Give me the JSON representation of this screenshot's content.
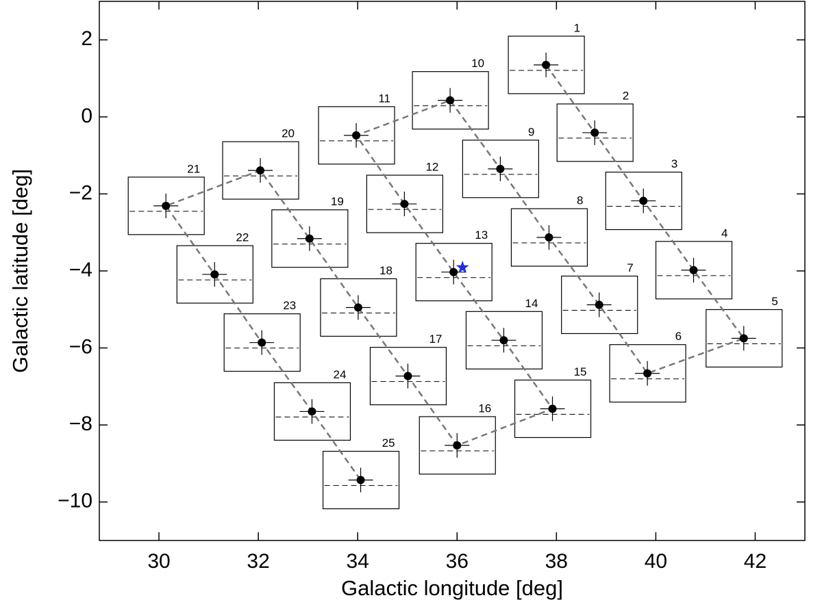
{
  "chart_data": {
    "type": "scatter",
    "x_label": "Galactic longitude [deg]",
    "y_label": "Galactic latitude [deg]",
    "xlim": [
      28.8,
      43
    ],
    "ylim": [
      -11,
      3
    ],
    "xticks": [
      30,
      32,
      34,
      36,
      38,
      40,
      42
    ],
    "yticks": [
      {
        "value": -10,
        "label": "−10"
      },
      {
        "value": -8,
        "label": "−8"
      },
      {
        "value": -6,
        "label": "−6"
      },
      {
        "value": -4,
        "label": "−4"
      },
      {
        "value": -2,
        "label": "−2"
      },
      0,
      2
    ],
    "labels": [
      "1",
      "2",
      "3",
      "4",
      "5",
      "6",
      "7",
      "8",
      "9",
      "10",
      "11",
      "12",
      "13",
      "14",
      "15",
      "16",
      "17",
      "18",
      "19",
      "20",
      "21",
      "22",
      "23",
      "24",
      "25"
    ],
    "x": [
      37.79,
      38.77,
      39.75,
      40.76,
      41.77,
      39.83,
      38.86,
      37.85,
      36.87,
      35.86,
      33.97,
      34.94,
      35.93,
      36.94,
      37.92,
      36.0,
      35.01,
      34.01,
      33.03,
      32.04,
      30.14,
      31.12,
      32.07,
      33.08,
      34.06
    ],
    "values": [
      1.35,
      -0.41,
      -2.18,
      -3.98,
      -5.75,
      -6.66,
      -4.88,
      -3.13,
      -1.35,
      0.43,
      -0.48,
      -2.26,
      -4.03,
      -5.8,
      -7.58,
      -8.53,
      -6.73,
      -4.95,
      -3.16,
      -1.39,
      -2.31,
      -4.09,
      -5.86,
      -7.65,
      -9.43
    ],
    "color": "#000000",
    "line_color": "#777777",
    "marker": {
      "x": 36.11,
      "y": -3.91,
      "color": "#1f2fd8"
    }
  }
}
